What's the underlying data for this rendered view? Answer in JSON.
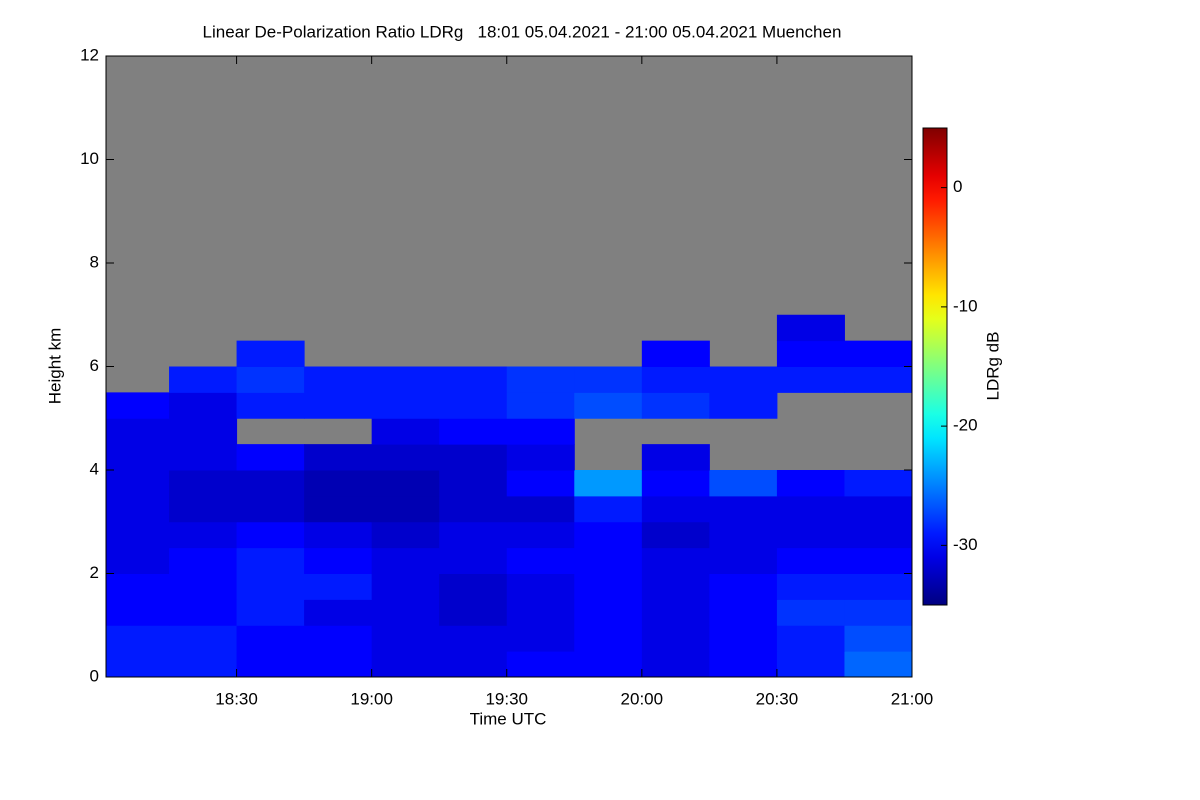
{
  "chart_data": {
    "type": "heatmap",
    "title": "Linear De-Polarization Ratio LDRg   18:01 05.04.2021 - 21:00 05.04.2021 Muenchen",
    "x_label": "Time UTC",
    "y_label": "Height km",
    "colorbar_label": "LDRg dB",
    "xlim": [
      18.0167,
      21.0
    ],
    "ylim": [
      0,
      12
    ],
    "xticks": [
      {
        "value": 18.5,
        "label": "18:30"
      },
      {
        "value": 19.0,
        "label": "19:00"
      },
      {
        "value": 19.5,
        "label": "19:30"
      },
      {
        "value": 20.0,
        "label": "20:00"
      },
      {
        "value": 20.5,
        "label": "20:30"
      },
      {
        "value": 21.0,
        "label": "21:00"
      }
    ],
    "yticks": [
      0,
      2,
      4,
      6,
      8,
      10,
      12
    ],
    "clim": [
      -35,
      5
    ],
    "cticks": [
      0,
      -10,
      -20,
      -30
    ],
    "colormap": "jet",
    "missing_color": "#808080",
    "x_bins": [
      18.0167,
      18.25,
      18.5,
      18.75,
      19.0,
      19.25,
      19.5,
      19.75,
      20.0,
      20.25,
      20.5,
      20.75,
      21.0
    ],
    "y_bins": [
      0,
      0.5,
      1,
      1.5,
      2,
      2.5,
      3,
      3.5,
      4,
      4.5,
      5,
      5.5,
      6,
      6.5,
      7,
      12
    ],
    "z": [
      [
        -29,
        -29,
        -30,
        -30,
        -31,
        -31,
        -30,
        -30,
        -31,
        -30,
        -29,
        -26
      ],
      [
        -29,
        -29,
        -30,
        -30,
        -31,
        -31,
        -31,
        -30,
        -31,
        -30,
        -29,
        -27
      ],
      [
        -30,
        -30,
        -29,
        -31,
        -31,
        -32,
        -31,
        -30,
        -31,
        -30,
        -28,
        -28
      ],
      [
        -30,
        -30,
        -29,
        -29,
        -31,
        -32,
        -31,
        -30,
        -31,
        -30,
        -29,
        -29
      ],
      [
        -31,
        -30,
        -29,
        -30,
        -31,
        -31,
        -30,
        -30,
        -31,
        -31,
        -30,
        -30
      ],
      [
        -31,
        -31,
        -30,
        -31,
        -32,
        -31,
        -31,
        -30,
        -32,
        -31,
        -31,
        -31
      ],
      [
        -31,
        -32,
        -32,
        -33,
        -33,
        -32,
        -32,
        -29,
        -31,
        -31,
        -31,
        -31
      ],
      [
        -31,
        -32,
        -32,
        -33,
        -33,
        -32,
        -30,
        -24,
        -30,
        -27,
        -30,
        -29
      ],
      [
        -31,
        -31,
        -30,
        -32,
        -32,
        -32,
        -31,
        null,
        -31,
        null,
        null,
        null
      ],
      [
        -31,
        -31,
        null,
        null,
        -31,
        -30,
        -30,
        null,
        null,
        null,
        null,
        null
      ],
      [
        -30,
        -31,
        -29,
        -29,
        -29,
        -29,
        -28,
        -27,
        -28,
        -29,
        null,
        null
      ],
      [
        null,
        -29,
        -28,
        -29,
        -29,
        -29,
        -28,
        -28,
        -29,
        -29,
        -29,
        -29
      ],
      [
        null,
        null,
        -29,
        null,
        null,
        null,
        null,
        null,
        -30,
        null,
        -30,
        -30
      ],
      [
        null,
        null,
        null,
        null,
        null,
        null,
        null,
        null,
        null,
        null,
        -31,
        null
      ],
      [
        null,
        null,
        null,
        null,
        null,
        null,
        null,
        null,
        null,
        null,
        null,
        null
      ]
    ]
  }
}
